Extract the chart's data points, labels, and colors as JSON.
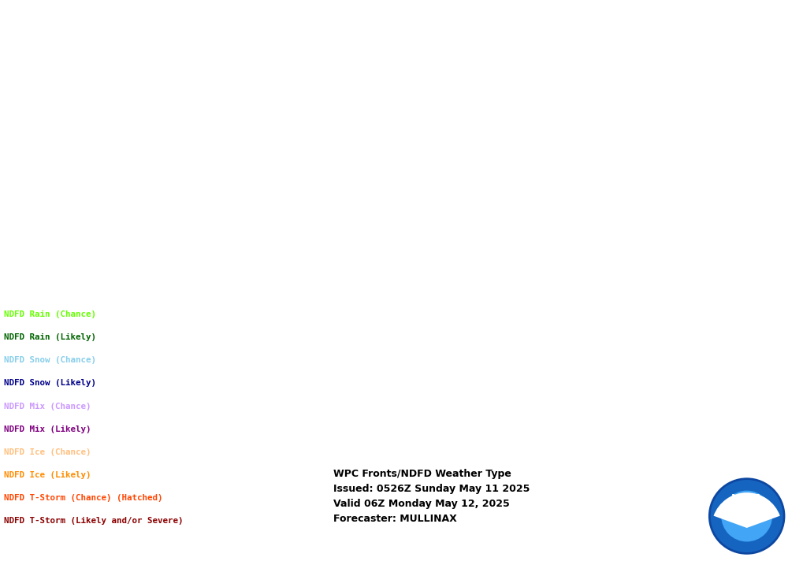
{
  "background_color": "#ffffff",
  "info_text": "WPC Fronts/NDFD Weather Type\nIssued: 0526Z Sunday May 11 2025\nValid 06Z Monday May 12, 2025\nForecaster: MULLINAX",
  "legend_items": [
    {
      "label": "NDFD Rain (Chance)",
      "color": "#66ff00"
    },
    {
      "label": "NDFD Rain (Likely)",
      "color": "#006400"
    },
    {
      "label": "NDFD Snow (Chance)",
      "color": "#87ceeb"
    },
    {
      "label": "NDFD Snow (Likely)",
      "color": "#00008b"
    },
    {
      "label": "NDFD Mix (Chance)",
      "color": "#cc99ff"
    },
    {
      "label": "NDFD Mix (Likely)",
      "color": "#800080"
    },
    {
      "label": "NDFD Ice (Chance)",
      "color": "#ffc080"
    },
    {
      "label": "NDFD Ice (Likely)",
      "color": "#ff8c00"
    },
    {
      "label": "NDFD T-Storm (Chance) (Hatched)",
      "color": "#ff4500"
    },
    {
      "label": "NDFD T-Storm (Likely and/or Severe)",
      "color": "#8b0000"
    }
  ],
  "isobar_color": "#ffa07a",
  "cold_front_color": "#0000cc",
  "warm_front_color": "#cc0000",
  "stationary_color_cold": "#0000cc",
  "stationary_color_warm": "#cc0000"
}
